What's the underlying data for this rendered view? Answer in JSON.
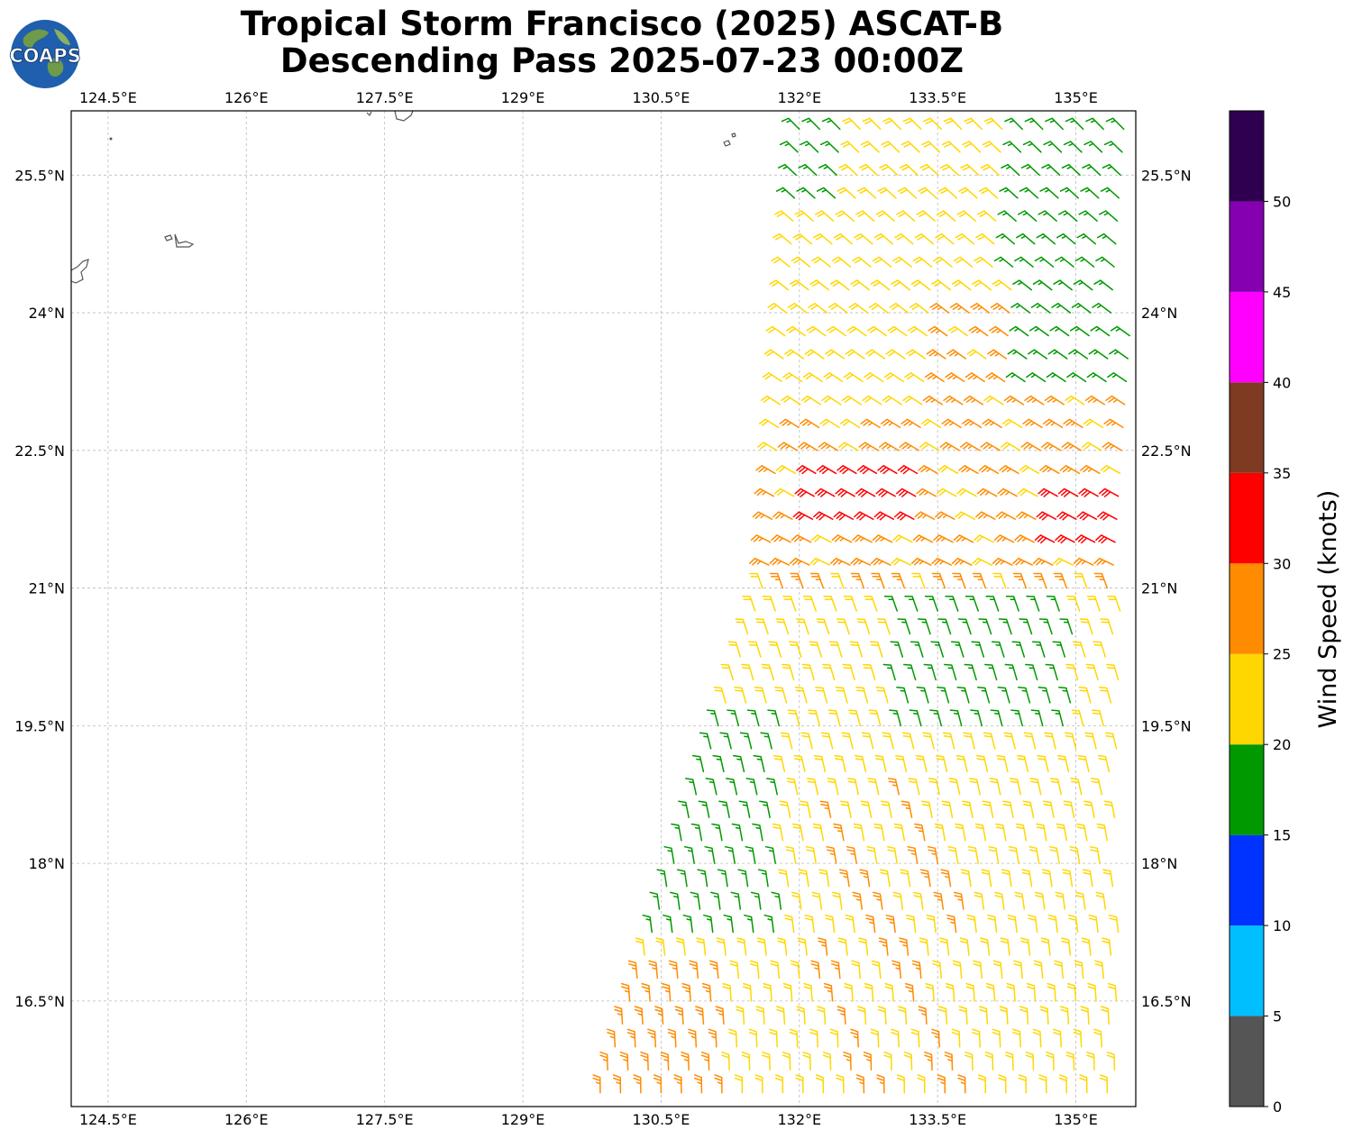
{
  "title": {
    "line1": "Tropical Storm Francisco (2025) ASCAT-B",
    "line2": "Descending Pass 2025-07-23 00:00Z"
  },
  "logo": {
    "text": "COAPS"
  },
  "map": {
    "lon_range": [
      124.1,
      135.65
    ],
    "lat_range": [
      15.35,
      26.2
    ],
    "lon_ticks": [
      {
        "value": 124.5,
        "label": "124.5°E"
      },
      {
        "value": 126.0,
        "label": "126°E"
      },
      {
        "value": 127.5,
        "label": "127.5°E"
      },
      {
        "value": 129.0,
        "label": "129°E"
      },
      {
        "value": 130.5,
        "label": "130.5°E"
      },
      {
        "value": 132.0,
        "label": "132°E"
      },
      {
        "value": 133.5,
        "label": "133.5°E"
      },
      {
        "value": 135.0,
        "label": "135°E"
      }
    ],
    "lat_ticks": [
      {
        "value": 25.5,
        "label": "25.5°N"
      },
      {
        "value": 24.0,
        "label": "24°N"
      },
      {
        "value": 22.5,
        "label": "22.5°N"
      },
      {
        "value": 21.0,
        "label": "21°N"
      },
      {
        "value": 19.5,
        "label": "19.5°N"
      },
      {
        "value": 18.0,
        "label": "18°N"
      },
      {
        "value": 16.5,
        "label": "16.5°N"
      }
    ],
    "gridlines": true
  },
  "colorbar": {
    "label": "Wind Speed (knots)",
    "bins": [
      {
        "min": 0,
        "max": 5,
        "color": "#555555"
      },
      {
        "min": 5,
        "max": 10,
        "color": "#00bfff"
      },
      {
        "min": 10,
        "max": 15,
        "color": "#0033ff"
      },
      {
        "min": 15,
        "max": 20,
        "color": "#009900"
      },
      {
        "min": 20,
        "max": 25,
        "color": "#ffd700"
      },
      {
        "min": 25,
        "max": 30,
        "color": "#ff8c00"
      },
      {
        "min": 30,
        "max": 35,
        "color": "#ff0000"
      },
      {
        "min": 35,
        "max": 40,
        "color": "#7f3a22"
      },
      {
        "min": 40,
        "max": 45,
        "color": "#ff00ff"
      },
      {
        "min": 45,
        "max": 50,
        "color": "#8400b0"
      },
      {
        "min": 50,
        "max": 55,
        "color": "#2e004f"
      }
    ],
    "tick_labels": [
      "0",
      "5",
      "10",
      "15",
      "20",
      "25",
      "30",
      "35",
      "40",
      "45",
      "50"
    ]
  }
}
